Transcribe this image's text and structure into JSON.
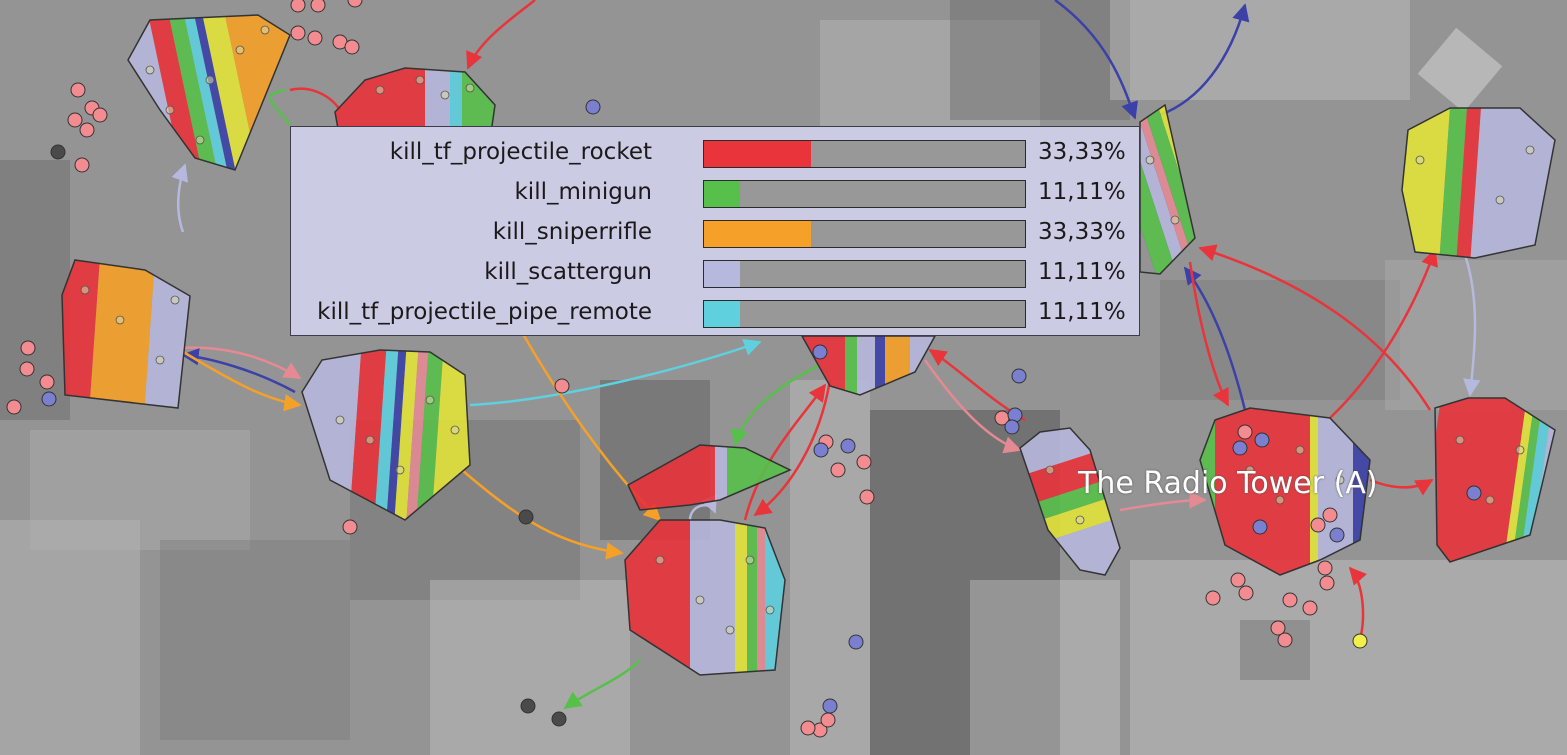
{
  "map": {
    "area_label": "The Radio Tower (A)",
    "colors": {
      "rocket": "#e8343a",
      "minigun": "#57c04a",
      "sniperrifle": "#f5a028",
      "scattergun": "#b7b8dd",
      "pipe_remote": "#5fd0de",
      "dark_blue": "#3c41a8",
      "pink": "#e58a93",
      "yellow": "#e3e23a",
      "node_red_dot": "#f38c90",
      "node_blue_dot": "#7a7fd0",
      "node_dark_dot": "#4a4a4a",
      "node_yellow_dot": "#f2f04a"
    }
  },
  "tooltip": {
    "weapons": [
      {
        "name": "kill_tf_projectile_rocket",
        "percent_label": "33,33%",
        "share": 0.3333,
        "color": "#e8343a"
      },
      {
        "name": "kill_minigun",
        "percent_label": "11,11%",
        "share": 0.1111,
        "color": "#57c04a"
      },
      {
        "name": "kill_sniperrifle",
        "percent_label": "33,33%",
        "share": 0.3333,
        "color": "#f5a028"
      },
      {
        "name": "kill_scattergun",
        "percent_label": "11,11%",
        "share": 0.1111,
        "color": "#b7b8dd"
      },
      {
        "name": "kill_tf_projectile_pipe_remote",
        "percent_label": "11,11%",
        "share": 0.1111,
        "color": "#5fd0de"
      }
    ]
  }
}
